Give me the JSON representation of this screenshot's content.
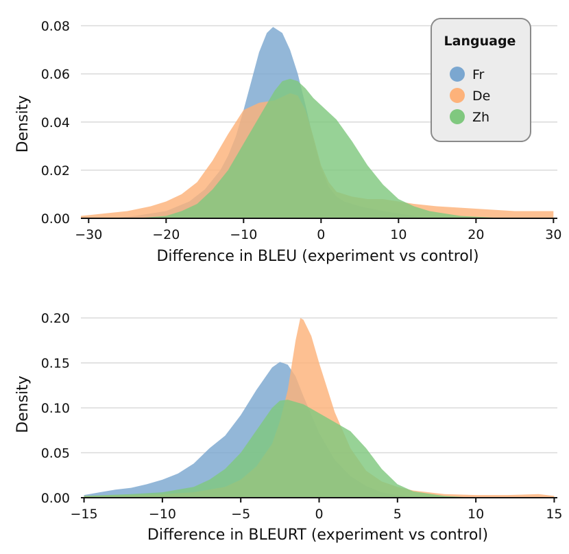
{
  "chart_data": [
    {
      "type": "area",
      "subtype": "density",
      "title": "",
      "xlabel": "Difference in BLEU (experiment vs control)",
      "ylabel": "Density",
      "xlim": [
        -31,
        30.5
      ],
      "ylim": [
        0,
        0.083
      ],
      "xticks": [
        -30,
        -20,
        -10,
        0,
        10,
        20,
        30
      ],
      "xtick_labels": [
        "−30",
        "−20",
        "−10",
        "0",
        "10",
        "20",
        "30"
      ],
      "yticks": [
        0,
        0.02,
        0.04,
        0.06,
        0.08
      ],
      "ytick_labels": [
        "0.00",
        "0.02",
        "0.04",
        "0.06",
        "0.08"
      ],
      "grid": "horizontal",
      "legend": {
        "title": "Language",
        "placement": "top-right",
        "entries": [
          {
            "name": "Fr",
            "color": "#7ba7d0"
          },
          {
            "name": "De",
            "color": "#fdb27a"
          },
          {
            "name": "Zh",
            "color": "#80c87f"
          }
        ]
      },
      "series": [
        {
          "name": "Fr",
          "color": "#7ba7d0",
          "x": [
            -27,
            -24,
            -20,
            -17,
            -15,
            -13,
            -12,
            -11,
            -10,
            -9,
            -8,
            -7,
            -6.2,
            -5,
            -4,
            -3,
            -2,
            -1,
            0,
            1,
            2,
            3,
            5,
            8,
            10,
            12,
            14
          ],
          "y": [
            0,
            0.001,
            0.003,
            0.007,
            0.012,
            0.02,
            0.026,
            0.034,
            0.045,
            0.057,
            0.069,
            0.077,
            0.0795,
            0.077,
            0.07,
            0.06,
            0.047,
            0.033,
            0.021,
            0.013,
            0.009,
            0.007,
            0.005,
            0.003,
            0.002,
            0.001,
            0
          ]
        },
        {
          "name": "De",
          "color": "#fdb27a",
          "x": [
            -31,
            -28,
            -25,
            -22,
            -20,
            -18,
            -16,
            -14,
            -12,
            -10,
            -8,
            -6,
            -4,
            -3,
            -2,
            -1,
            0,
            1,
            2,
            4,
            6,
            8,
            10,
            12,
            15,
            20,
            25,
            30
          ],
          "y": [
            0.001,
            0.002,
            0.003,
            0.005,
            0.007,
            0.01,
            0.015,
            0.024,
            0.035,
            0.045,
            0.048,
            0.049,
            0.052,
            0.051,
            0.045,
            0.034,
            0.022,
            0.015,
            0.011,
            0.009,
            0.008,
            0.008,
            0.007,
            0.006,
            0.005,
            0.004,
            0.003,
            0.003
          ]
        },
        {
          "name": "Zh",
          "color": "#80c87f",
          "x": [
            -24,
            -20,
            -18,
            -16,
            -14,
            -12,
            -10,
            -8,
            -6,
            -5,
            -4,
            -3,
            -2,
            -1,
            0,
            2,
            4,
            6,
            8,
            10,
            12,
            14,
            18,
            24
          ],
          "y": [
            0,
            0.001,
            0.003,
            0.006,
            0.012,
            0.02,
            0.031,
            0.042,
            0.053,
            0.057,
            0.058,
            0.057,
            0.054,
            0.05,
            0.047,
            0.041,
            0.032,
            0.022,
            0.014,
            0.008,
            0.005,
            0.003,
            0.001,
            0
          ]
        }
      ]
    },
    {
      "type": "area",
      "subtype": "density",
      "title": "",
      "xlabel": "Difference in BLEURT (experiment vs control)",
      "ylabel": "Density",
      "xlim": [
        -15.2,
        15.2
      ],
      "ylim": [
        0,
        0.22
      ],
      "xticks": [
        -15,
        -10,
        -5,
        0,
        5,
        10,
        15
      ],
      "xtick_labels": [
        "−15",
        "−10",
        "−5",
        "0",
        "5",
        "10",
        "15"
      ],
      "yticks": [
        0,
        0.05,
        0.1,
        0.15,
        0.2
      ],
      "ytick_labels": [
        "0.00",
        "0.05",
        "0.10",
        "0.15",
        "0.20"
      ],
      "grid": "horizontal",
      "series": [
        {
          "name": "Fr",
          "color": "#7ba7d0",
          "x": [
            -15,
            -14,
            -13,
            -12,
            -11,
            -10,
            -9,
            -8,
            -7,
            -6,
            -5,
            -4,
            -3,
            -2.5,
            -2,
            -1.5,
            -1,
            0,
            1,
            2,
            3,
            4,
            5,
            6,
            8
          ],
          "y": [
            0.003,
            0.006,
            0.009,
            0.011,
            0.015,
            0.02,
            0.027,
            0.038,
            0.055,
            0.069,
            0.092,
            0.12,
            0.145,
            0.151,
            0.148,
            0.135,
            0.113,
            0.072,
            0.042,
            0.024,
            0.013,
            0.006,
            0.003,
            0.001,
            0
          ]
        },
        {
          "name": "De",
          "color": "#fdb27a",
          "x": [
            -15,
            -12,
            -10,
            -8,
            -6,
            -5,
            -4,
            -3,
            -2.5,
            -2,
            -1.5,
            -1.2,
            -1,
            -0.5,
            0,
            1,
            2,
            3,
            4,
            5,
            6,
            7,
            8,
            10,
            12,
            14,
            15
          ],
          "y": [
            0.002,
            0.003,
            0.004,
            0.006,
            0.012,
            0.02,
            0.035,
            0.06,
            0.085,
            0.12,
            0.175,
            0.2,
            0.198,
            0.18,
            0.15,
            0.095,
            0.055,
            0.03,
            0.018,
            0.012,
            0.008,
            0.006,
            0.004,
            0.003,
            0.003,
            0.004,
            0.002
          ]
        },
        {
          "name": "Zh",
          "color": "#80c87f",
          "x": [
            -15,
            -12,
            -10,
            -8,
            -7,
            -6,
            -5,
            -4,
            -3,
            -2.5,
            -2,
            -1,
            0,
            1,
            2,
            3,
            4,
            5,
            6,
            8,
            10
          ],
          "y": [
            0.002,
            0.004,
            0.006,
            0.012,
            0.02,
            0.032,
            0.05,
            0.075,
            0.1,
            0.108,
            0.109,
            0.104,
            0.094,
            0.084,
            0.074,
            0.055,
            0.032,
            0.015,
            0.007,
            0.002,
            0
          ]
        }
      ]
    }
  ]
}
